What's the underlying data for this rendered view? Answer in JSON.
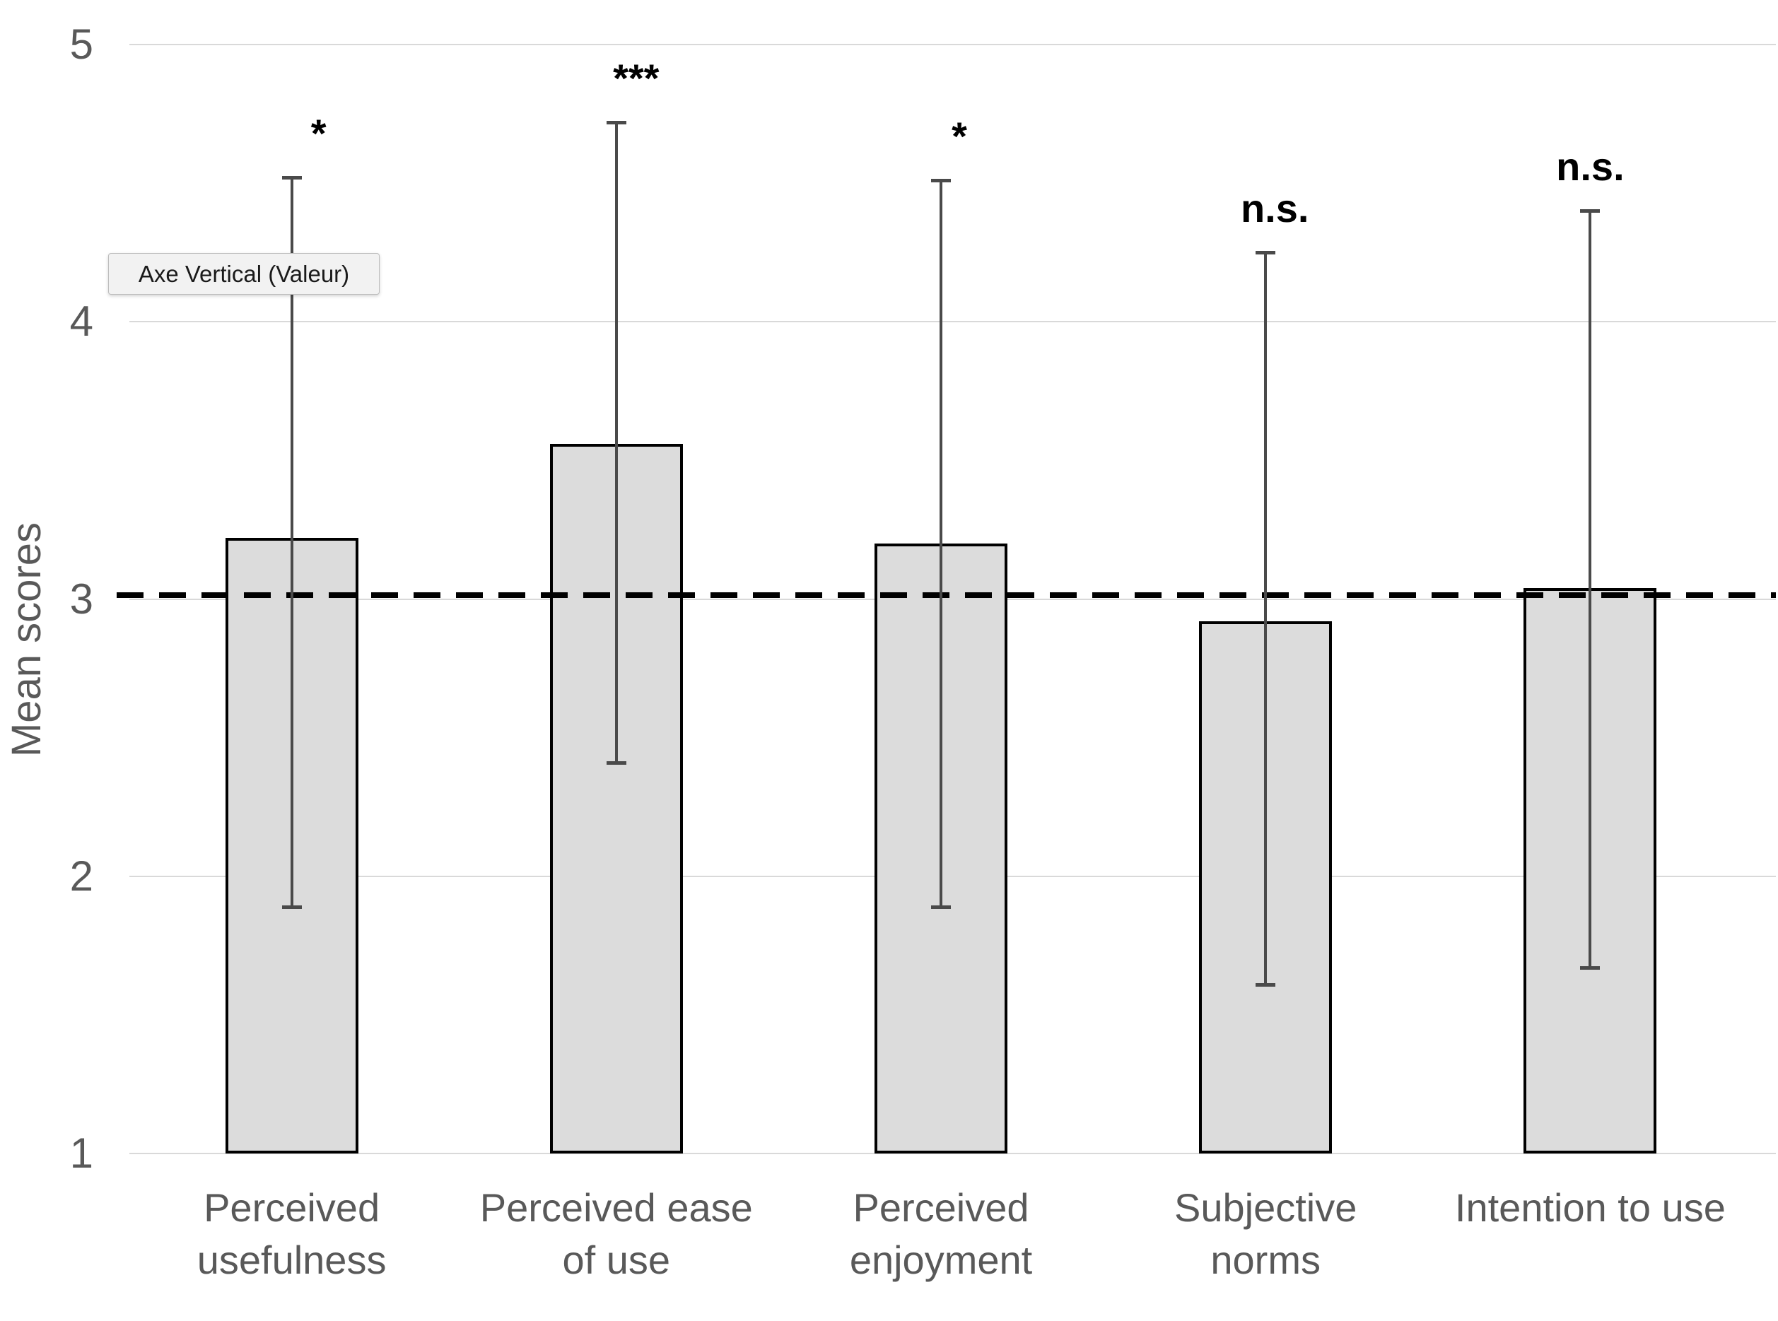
{
  "tooltip": {
    "text": "Axe Vertical (Valeur)"
  },
  "chart_data": {
    "type": "bar",
    "title": "",
    "xlabel": "",
    "ylabel": "Mean scores",
    "ylim": [
      1,
      5
    ],
    "yticks": [
      5,
      4,
      3,
      2,
      1
    ],
    "grid": "horizontal gridlines at each integer",
    "legend": "none",
    "categories": [
      "Perceived usefulness",
      "Perceived ease of use",
      "Perceived enjoyment",
      "Subjective norms",
      "Intention to use"
    ],
    "category_label_lines": [
      [
        "Perceived",
        "usefulness"
      ],
      [
        "Perceived ease",
        "of use"
      ],
      [
        "Perceived",
        "enjoyment"
      ],
      [
        "Subjective",
        "norms"
      ],
      [
        "Intention to use"
      ]
    ],
    "values": [
      3.22,
      3.56,
      3.2,
      2.92,
      3.04
    ],
    "error_bars": {
      "low": [
        1.89,
        2.41,
        1.89,
        1.61,
        1.67
      ],
      "high": [
        4.52,
        4.72,
        4.51,
        4.25,
        4.4
      ]
    },
    "significance_labels": [
      "*",
      "***",
      "*",
      "n.s.",
      "n.s."
    ],
    "reference_line": {
      "y": 3,
      "style": "dashed",
      "color": "#000000"
    },
    "colors": {
      "bar_fill": "#dcdcdc",
      "bar_border": "#000000",
      "gridline": "#d9d9d9",
      "error_bar": "#4a4a4a",
      "axis_text": "#595959",
      "reference_line": "#000000"
    }
  }
}
